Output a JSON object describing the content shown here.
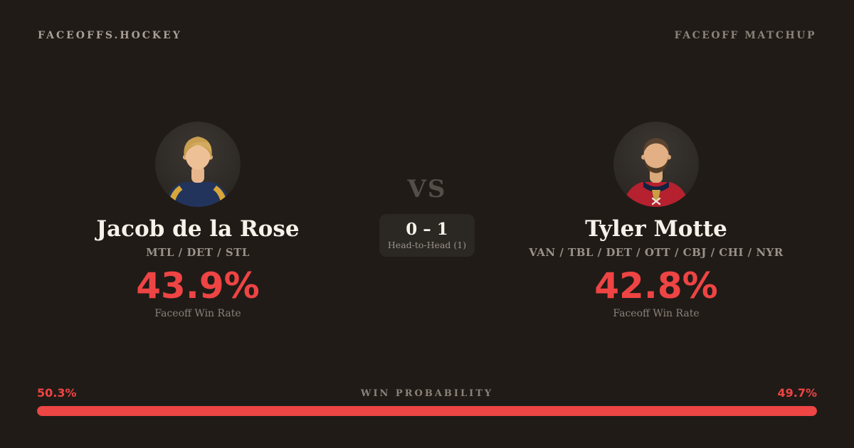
{
  "header": {
    "brand": "FACEOFFS.HOCKEY",
    "label": "FACEOFF MATCHUP"
  },
  "players": {
    "left": {
      "name": "Jacob de la Rose",
      "teams": "MTL / DET / STL",
      "win_rate": "43.9%",
      "win_rate_label": "Faceoff Win Rate"
    },
    "right": {
      "name": "Tyler Motte",
      "teams": "VAN / TBL / DET / OTT / CBJ / CHI / NYR",
      "win_rate": "42.8%",
      "win_rate_label": "Faceoff Win Rate"
    }
  },
  "center": {
    "vs": "VS",
    "h2h_score": "0 – 1",
    "h2h_label": "Head-to-Head (1)"
  },
  "probability": {
    "left_label": "50.3%",
    "right_label": "49.7%",
    "title": "WIN PROBABILITY",
    "left_pct": 50.3,
    "right_pct": 49.7,
    "bar_color": "#ee4545"
  },
  "colors": {
    "background": "#201b17",
    "accent_red": "#ee4444",
    "text_primary": "#f6f2ea",
    "text_muted": "#99918a"
  }
}
